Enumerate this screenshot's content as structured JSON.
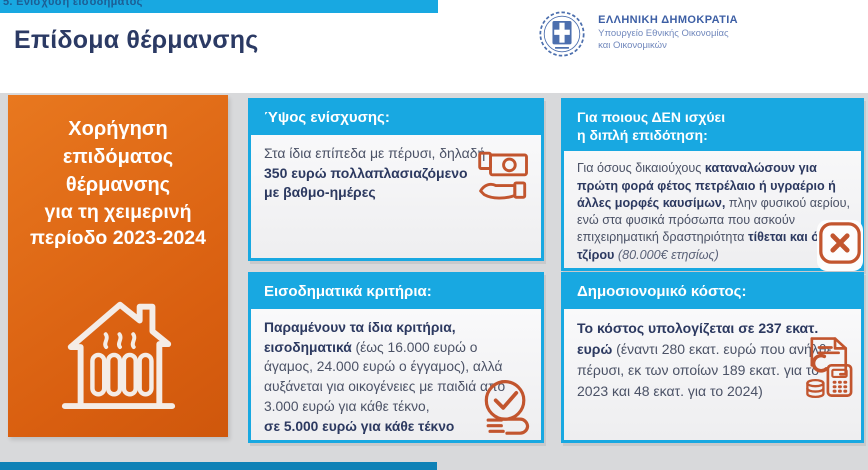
{
  "top_bar": {
    "label": "5. Ενίσχυση εισοδήματος"
  },
  "header": {
    "title": "Επίδομα θέρμανσης",
    "government": {
      "emblem": "hellenic-republic-emblem",
      "line1": "ΕΛΛΗΝΙΚΗ ΔΗΜΟΚΡΑΤΙΑ",
      "line2": "Υπουργείο Εθνικής Οικονομίας",
      "line3": "και Οικονομικών"
    }
  },
  "orange_panel": {
    "heading": "Χορήγηση επιδόματος θέρμανσης",
    "subheading": "για τη χειμερινή περίοδο 2023-2024",
    "icon": "house-radiator-icon"
  },
  "cards": [
    {
      "id": "amount",
      "header": "Ύψος ενίσχυσης:",
      "icon": "hand-money-icon",
      "body": [
        {
          "text": "Στα ίδια επίπεδα με πέρυσι, δηλαδή"
        },
        {
          "br": true
        },
        {
          "text": "350 ευρώ πολλαπλασιαζόμενο",
          "bold": true
        },
        {
          "br": true
        },
        {
          "text": "με βαθμο-ημέρες",
          "bold": true
        }
      ]
    },
    {
      "id": "double-subsidy-exclusion",
      "header": "Για ποιους ΔΕΝ ισχύει\nη διπλή επιδότηση:",
      "icon": "x-cross-icon",
      "body": [
        {
          "text": "Για όσους δικαιούχους "
        },
        {
          "text": "καταναλώσουν για πρώτη φορά φέτος πετρέλαιο ή υγραέριο ή άλλες μορφές καυσίμων,",
          "bold": true
        },
        {
          "text": " πλην φυσικού αερίου, ενώ στα φυσικά πρόσωπα που ασκούν επιχειρηματική δραστηριότητα "
        },
        {
          "text": "τίθεται και όριο τζίρου",
          "bold": true
        },
        {
          "text": " "
        },
        {
          "text": "(80.000€ ετησίως)",
          "italic": true
        }
      ]
    },
    {
      "id": "income-criteria",
      "header": "Εισοδηματικά κριτήρια:",
      "icon": "hand-check-icon",
      "body": [
        {
          "text": "Παραμένουν τα ίδια κριτήρια, εισοδηματικά",
          "bold": true
        },
        {
          "text": " (έως 16.000 ευρώ ο άγαμος, 24.000 ευρώ ο έγγαμος), αλλά αυξάνεται για οικογένειες με παιδιά από 3.000 ευρώ για κάθε τέκνο,"
        },
        {
          "br": true
        },
        {
          "text": "σε 5.000 ευρώ για κάθε τέκνο",
          "bold": true
        }
      ]
    },
    {
      "id": "fiscal-cost",
      "header": "Δημοσιονομικό κόστος:",
      "icon": "calculator-document-icon",
      "body": [
        {
          "text": "Το κόστος υπολογίζεται σε 237 εκατ. ευρώ",
          "bold": true
        },
        {
          "text": " (έναντι 280 εκατ. ευρώ που ανήλθε πέρυσι, εκ των οποίων 189 εκατ. για το 2023 και 48 εκατ. για το 2024)"
        }
      ]
    }
  ],
  "colors": {
    "accent_cyan": "#18a8e1",
    "orange_panel": "#db6312",
    "icon_stroke": "#c2552e",
    "title_navy": "#2b3a64",
    "bottom_bar_blue": "#0e81b6",
    "background_gray": "#d8d9db"
  }
}
